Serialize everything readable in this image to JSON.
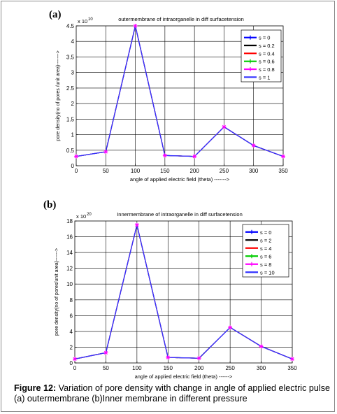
{
  "panels": [
    {
      "letter": "(a)",
      "chart_data": {
        "type": "line",
        "title": "outermembrane of intraorganelle in diff surfacetension",
        "xlabel": "angle of applied electric field (theta) ------->",
        "ylabel": "pore density(no of pores /unit area)------->",
        "y_multiplier": "x 10",
        "y_exponent": "10",
        "xlim": [
          0,
          350
        ],
        "ylim": [
          0,
          4.5
        ],
        "xticks": [
          "0",
          "50",
          "100",
          "150",
          "200",
          "250",
          "300",
          "350"
        ],
        "yticks": [
          "0",
          "0.5",
          "1",
          "1.5",
          "2",
          "2.5",
          "3",
          "3.5",
          "4",
          "4.5"
        ],
        "grid": true,
        "legend_position": "top-right",
        "x": [
          0,
          50,
          100,
          150,
          200,
          250,
          300,
          350
        ],
        "series": [
          {
            "name": "s = 0",
            "color": "#0000ff",
            "marker": "+",
            "values": [
              0.3,
              0.45,
              4.5,
              0.33,
              0.3,
              1.25,
              0.65,
              0.3
            ]
          },
          {
            "name": "s = 0.2",
            "color": "#000000",
            "marker": "",
            "values": [
              0.3,
              0.45,
              4.5,
              0.33,
              0.3,
              1.25,
              0.65,
              0.3
            ]
          },
          {
            "name": "s = 0.4",
            "color": "#ff0000",
            "marker": "",
            "values": [
              0.3,
              0.45,
              4.5,
              0.33,
              0.3,
              1.25,
              0.65,
              0.3
            ]
          },
          {
            "name": "s = 0.6",
            "color": "#00cc00",
            "marker": "+",
            "values": [
              0.3,
              0.45,
              4.5,
              0.33,
              0.3,
              1.25,
              0.65,
              0.3
            ]
          },
          {
            "name": "s = 0.8",
            "color": "#ff00ff",
            "marker": "*",
            "values": [
              0.3,
              0.45,
              4.5,
              0.33,
              0.3,
              1.25,
              0.65,
              0.3
            ]
          },
          {
            "name": "s = 1",
            "color": "#3333ff",
            "marker": "",
            "values": [
              0.3,
              0.45,
              4.5,
              0.33,
              0.3,
              1.25,
              0.65,
              0.3
            ]
          }
        ]
      }
    },
    {
      "letter": "(b)",
      "chart_data": {
        "type": "line",
        "title": "Innermembrane of intraorganelle in diff surfacetension",
        "xlabel": "angle of applied electric field (theta) ------>",
        "ylabel": "pore density(no of pores/unit area)------>",
        "y_multiplier": "x 10",
        "y_exponent": "20",
        "xlim": [
          0,
          350
        ],
        "ylim": [
          0,
          18
        ],
        "xticks": [
          "0",
          "50",
          "100",
          "150",
          "200",
          "250",
          "300",
          "350"
        ],
        "yticks": [
          "0",
          "2",
          "4",
          "6",
          "8",
          "10",
          "12",
          "14",
          "16",
          "18"
        ],
        "grid": true,
        "legend_position": "top-right",
        "x": [
          0,
          50,
          100,
          150,
          200,
          250,
          300,
          350
        ],
        "series": [
          {
            "name": "s = 0",
            "color": "#0000ff",
            "marker": "+",
            "values": [
              0.5,
              1.3,
              17.5,
              0.7,
              0.6,
              4.5,
              2.1,
              0.5
            ]
          },
          {
            "name": "s = 2",
            "color": "#000000",
            "marker": "",
            "values": [
              0.5,
              1.3,
              17.5,
              0.7,
              0.6,
              4.5,
              2.1,
              0.5
            ]
          },
          {
            "name": "s = 4",
            "color": "#ff0000",
            "marker": "",
            "values": [
              0.5,
              1.3,
              17.5,
              0.7,
              0.6,
              4.5,
              2.1,
              0.5
            ]
          },
          {
            "name": "s = 6",
            "color": "#00cc00",
            "marker": "+",
            "values": [
              0.5,
              1.3,
              17.5,
              0.7,
              0.6,
              4.5,
              2.1,
              0.5
            ]
          },
          {
            "name": "s = 8",
            "color": "#ff00ff",
            "marker": "*",
            "values": [
              0.5,
              1.3,
              17.5,
              0.7,
              0.6,
              4.5,
              2.1,
              0.5
            ]
          },
          {
            "name": "s = 10",
            "color": "#3333ff",
            "marker": "",
            "values": [
              0.5,
              1.3,
              17.5,
              0.7,
              0.6,
              4.5,
              2.1,
              0.5
            ]
          }
        ]
      }
    }
  ],
  "caption": {
    "label": "Figure 12:",
    "text": " Variation of  pore density with change in angle of applied electric pulse  (a) outermembrane (b)Inner membrane in different pressure"
  }
}
